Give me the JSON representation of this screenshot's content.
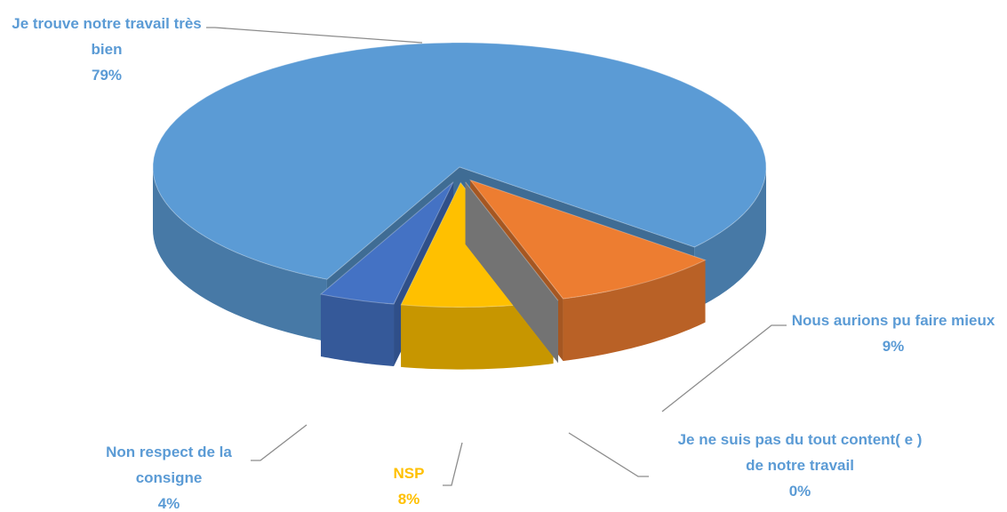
{
  "chart_data": {
    "type": "pie",
    "categories": [
      "Je trouve notre travail très bien",
      "Nous aurions pu faire mieux",
      "Je ne suis pas du tout content( e ) de notre travail",
      "NSP",
      "Non respect de la consigne"
    ],
    "values": [
      79,
      9,
      0,
      8,
      4
    ],
    "value_labels": [
      "79%",
      "9%",
      "0%",
      "8%",
      "4%"
    ],
    "colors": [
      "#5b9bd5",
      "#ed7d31",
      "#a5a5a5",
      "#ffc000",
      "#4472c4"
    ]
  }
}
